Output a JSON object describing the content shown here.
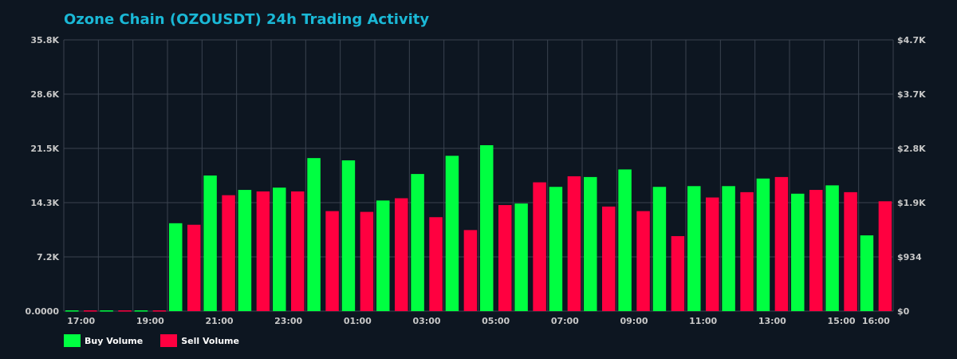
{
  "chart_data": {
    "type": "bar",
    "title": "Ozone Chain (OZOUSDT) 24h Trading Activity",
    "categories": [
      "17:00",
      "18:00",
      "19:00",
      "20:00",
      "21:00",
      "22:00",
      "23:00",
      "00:00",
      "01:00",
      "02:00",
      "03:00",
      "04:00",
      "05:00",
      "06:00",
      "07:00",
      "08:00",
      "09:00",
      "10:00",
      "11:00",
      "12:00",
      "13:00",
      "14:00",
      "15:00",
      "16:00"
    ],
    "x_tick_labels": [
      "17:00",
      "19:00",
      "21:00",
      "23:00",
      "01:00",
      "03:00",
      "05:00",
      "07:00",
      "09:00",
      "11:00",
      "13:00",
      "15:00",
      "16:00"
    ],
    "series": [
      {
        "name": "Buy Volume",
        "color": "#00ff41",
        "values": [
          100,
          100,
          100,
          11600,
          17900,
          16000,
          16300,
          20200,
          19900,
          14600,
          18100,
          20500,
          21900,
          14200,
          16400,
          17700,
          18700,
          16400,
          16500,
          16500,
          17500,
          15500,
          16600,
          10000
        ]
      },
      {
        "name": "Sell Volume",
        "color": "#ff0040",
        "values": [
          100,
          100,
          100,
          11400,
          15300,
          15800,
          15800,
          13200,
          13100,
          14900,
          12400,
          10700,
          14000,
          17000,
          17800,
          13800,
          13200,
          9900,
          15000,
          15700,
          17700,
          16000,
          15700,
          14500
        ]
      }
    ],
    "ylim": [
      0,
      35800
    ],
    "y_tick_labels": [
      "0.0000",
      "7.2K",
      "14.3K",
      "21.5K",
      "28.6K",
      "35.8K"
    ],
    "y2_tick_labels": [
      "$0",
      "$934",
      "$1.9K",
      "$2.8K",
      "$3.7K",
      "$4.7K"
    ],
    "grid": true,
    "legend_placement": "bottom-left"
  }
}
